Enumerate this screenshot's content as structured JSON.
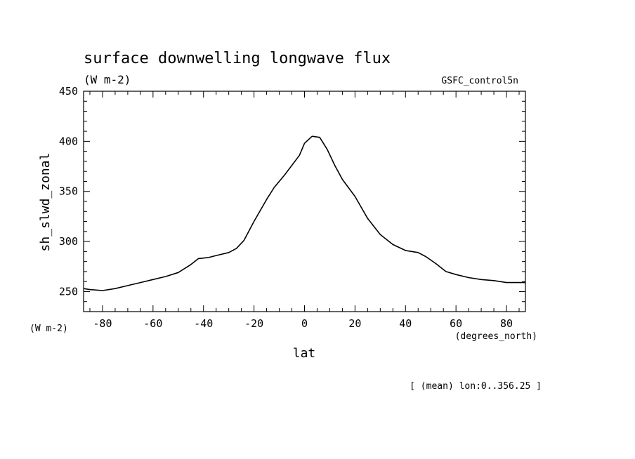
{
  "chart_data": {
    "type": "line",
    "title": "surface downwelling longwave flux",
    "subtitle": "(W m-2)",
    "dataset": "GSFC_control5n",
    "xlabel": "lat",
    "ylabel": "sh_slwd_zonal",
    "y_units": "(W m-2)",
    "x_units": "(degrees_north)",
    "footnote": "[ (mean) lon:0..356.25 ]",
    "xlim": [
      -87.5,
      87.5
    ],
    "ylim": [
      230,
      450
    ],
    "xticks": [
      -80,
      -60,
      -40,
      -20,
      0,
      20,
      40,
      60,
      80
    ],
    "yticks": [
      250,
      300,
      350,
      400,
      450
    ],
    "grid": false,
    "line_color": "#000000",
    "series": [
      {
        "x": [
          -87.5,
          -85,
          -80,
          -75,
          -70,
          -65,
          -60,
          -55,
          -50,
          -45,
          -42,
          -38,
          -35,
          -30,
          -27,
          -24,
          -20,
          -15,
          -12,
          -8,
          -5,
          -2,
          0,
          3,
          6,
          9,
          12,
          15,
          20,
          25,
          30,
          35,
          40,
          45,
          48,
          52,
          56,
          60,
          65,
          70,
          75,
          80,
          85,
          87.5
        ],
        "y": [
          253,
          252,
          251,
          253,
          256,
          259,
          262,
          265,
          269,
          277,
          283,
          284,
          286,
          289,
          293,
          301,
          320,
          342,
          354,
          366,
          376,
          386,
          398,
          405,
          404,
          392,
          376,
          362,
          345,
          323,
          307,
          297,
          291,
          289,
          285,
          278,
          270,
          267,
          264,
          262,
          261,
          259,
          259,
          259
        ]
      }
    ]
  }
}
